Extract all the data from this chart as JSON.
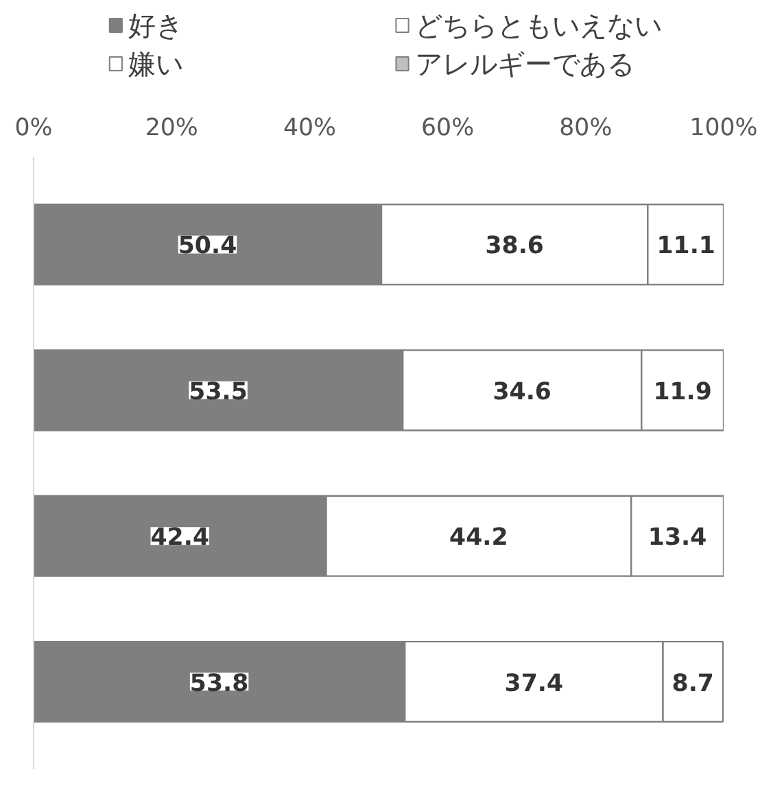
{
  "chart_data": {
    "type": "bar",
    "orientation": "horizontal",
    "stacked": true,
    "categories": [
      null,
      null,
      null,
      null
    ],
    "series": [
      {
        "name": "好き",
        "color": "#7f7f7f",
        "values": [
          50.4,
          53.5,
          42.4,
          53.8
        ]
      },
      {
        "name": "どちらともいえない",
        "color": "#ffffff",
        "values": [
          38.6,
          34.6,
          44.2,
          37.4
        ]
      },
      {
        "name": "嫌い",
        "color": "#ffffff",
        "values": [
          11.1,
          11.9,
          13.4,
          8.7
        ]
      },
      {
        "name": "アレルギーである",
        "color": "#bfbfbf",
        "values": [
          null,
          null,
          null,
          null
        ]
      }
    ],
    "xlim": [
      0,
      100
    ],
    "xticks": [
      {
        "value": 0,
        "label": "0%"
      },
      {
        "value": 20,
        "label": "20%"
      },
      {
        "value": 40,
        "label": "40%"
      },
      {
        "value": 60,
        "label": "60%"
      },
      {
        "value": 80,
        "label": "80%"
      },
      {
        "value": 100,
        "label": "100%"
      }
    ],
    "data_labels": true,
    "legend": "top",
    "grid": false
  }
}
